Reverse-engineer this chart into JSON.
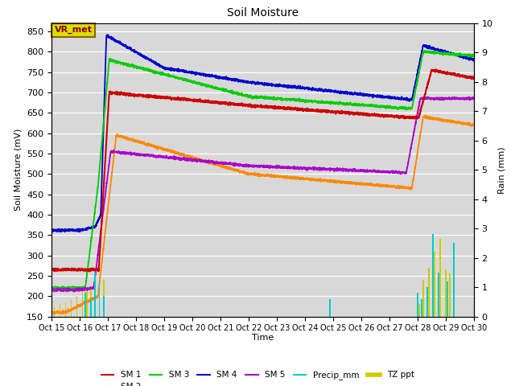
{
  "title": "Soil Moisture",
  "ylabel_left": "Soil Moisture (mV)",
  "ylabel_right": "Rain (mm)",
  "xlabel": "Time",
  "ylim_left": [
    150,
    870
  ],
  "ylim_right": [
    0.0,
    10.0
  ],
  "background_color": "#d8d8d8",
  "annotation_text": "VR_met",
  "colors": {
    "SM1": "#cc0000",
    "SM2": "#ff8800",
    "SM3": "#00cc00",
    "SM4": "#0000cc",
    "SM5": "#aa00cc",
    "Precip_mm": "#00cccc",
    "TZ_ppt": "#cccc00"
  },
  "x_ticks": [
    15,
    16,
    17,
    18,
    19,
    20,
    21,
    22,
    23,
    24,
    25,
    26,
    27,
    28,
    29,
    30
  ],
  "x_tick_labels": [
    "Oct 15",
    "Oct 16",
    "Oct 17",
    "Oct 18",
    "Oct 19",
    "Oct 20",
    "Oct 21",
    "Oct 22",
    "Oct 23",
    "Oct 24",
    "Oct 25",
    "Oct 26",
    "Oct 27",
    "Oct 28",
    "Oct 29",
    "Oct 30"
  ],
  "yticks_left": [
    150,
    200,
    250,
    300,
    350,
    400,
    450,
    500,
    550,
    600,
    650,
    700,
    750,
    800,
    850
  ],
  "yticks_right": [
    0.0,
    1.0,
    2.0,
    3.0,
    4.0,
    5.0,
    6.0,
    7.0,
    8.0,
    9.0,
    10.0
  ]
}
